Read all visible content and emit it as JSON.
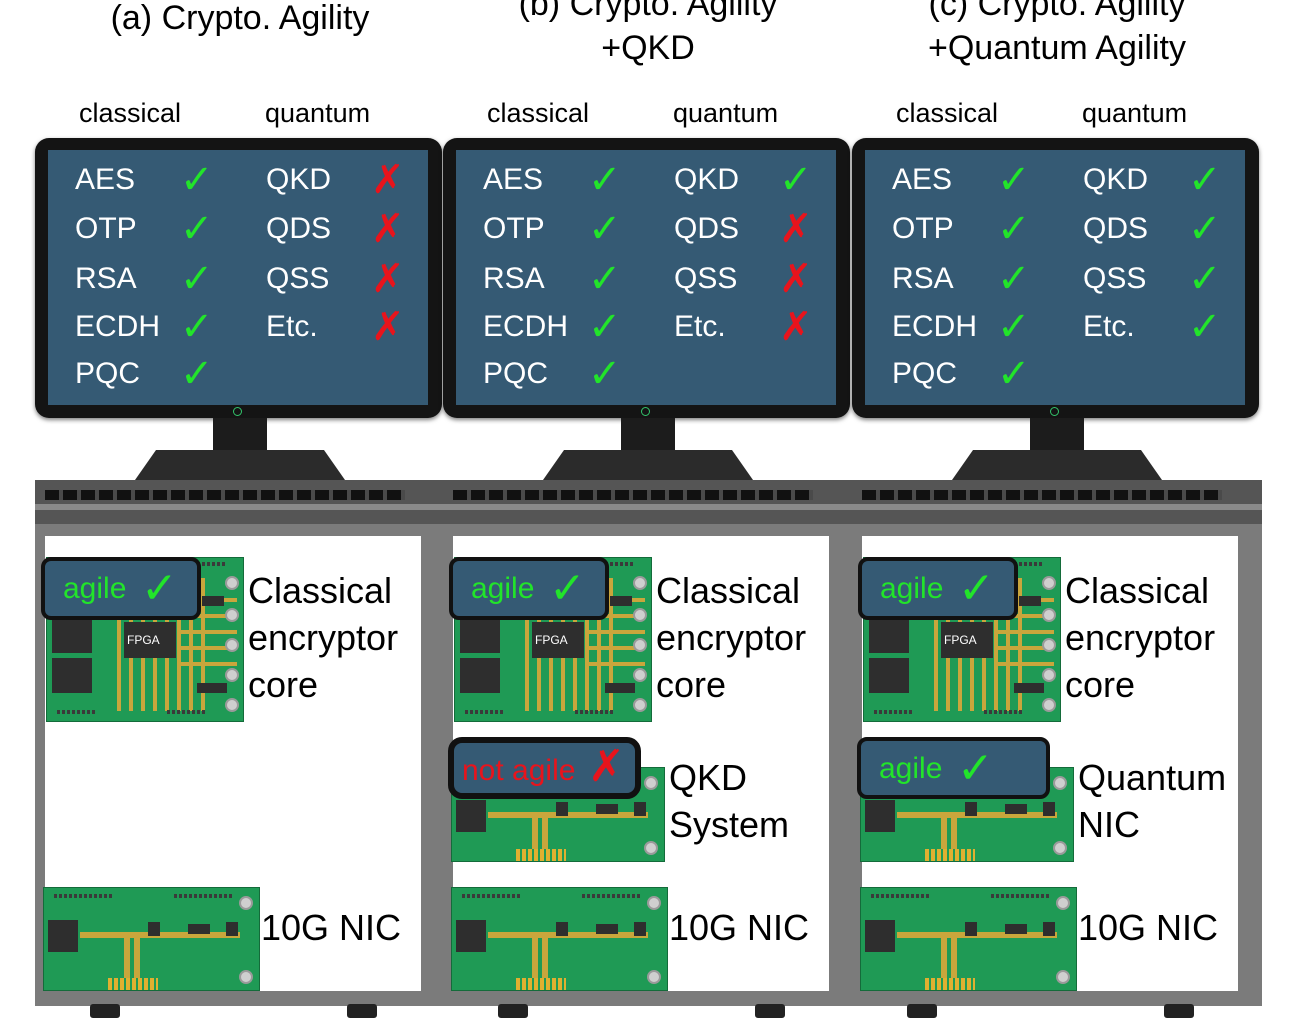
{
  "panels": [
    {
      "title_lines": [
        "(a) Crypto. Agility"
      ],
      "classical_header": "classical",
      "quantum_header": "quantum",
      "classical_algos": [
        {
          "name": "AES",
          "ok": true
        },
        {
          "name": "OTP",
          "ok": true
        },
        {
          "name": "RSA",
          "ok": true
        },
        {
          "name": "ECDH",
          "ok": true
        },
        {
          "name": "PQC",
          "ok": true
        }
      ],
      "quantum_algos": [
        {
          "name": "QKD",
          "ok": false
        },
        {
          "name": "QDS",
          "ok": false
        },
        {
          "name": "QSS",
          "ok": false
        },
        {
          "name": "Etc.",
          "ok": false
        }
      ],
      "cards": [
        {
          "kind": "encryptor",
          "chip_label": "FPGA",
          "label_lines": [
            "Classical",
            "encryptor",
            "core"
          ],
          "badge": {
            "text": "agile",
            "ok": true
          }
        },
        {
          "kind": "nic",
          "label_lines": [
            "10G NIC"
          ]
        }
      ]
    },
    {
      "title_lines": [
        "(b) Crypto. Agility",
        "+QKD"
      ],
      "classical_header": "classical",
      "quantum_header": "quantum",
      "classical_algos": [
        {
          "name": "AES",
          "ok": true
        },
        {
          "name": "OTP",
          "ok": true
        },
        {
          "name": "RSA",
          "ok": true
        },
        {
          "name": "ECDH",
          "ok": true
        },
        {
          "name": "PQC",
          "ok": true
        }
      ],
      "quantum_algos": [
        {
          "name": "QKD",
          "ok": true
        },
        {
          "name": "QDS",
          "ok": false
        },
        {
          "name": "QSS",
          "ok": false
        },
        {
          "name": "Etc.",
          "ok": false
        }
      ],
      "cards": [
        {
          "kind": "encryptor",
          "chip_label": "FPGA",
          "label_lines": [
            "Classical",
            "encryptor",
            "core"
          ],
          "badge": {
            "text": "agile",
            "ok": true
          }
        },
        {
          "kind": "quantum",
          "label_lines": [
            "QKD",
            "System"
          ],
          "badge": {
            "text": "not agile",
            "ok": false
          }
        },
        {
          "kind": "nic",
          "label_lines": [
            "10G NIC"
          ]
        }
      ]
    },
    {
      "title_lines": [
        "(c) Crypto. Agility",
        "+Quantum Agility"
      ],
      "classical_header": "classical",
      "quantum_header": "quantum",
      "classical_algos": [
        {
          "name": "AES",
          "ok": true
        },
        {
          "name": "OTP",
          "ok": true
        },
        {
          "name": "RSA",
          "ok": true
        },
        {
          "name": "ECDH",
          "ok": true
        },
        {
          "name": "PQC",
          "ok": true
        }
      ],
      "quantum_algos": [
        {
          "name": "QKD",
          "ok": true
        },
        {
          "name": "QDS",
          "ok": true
        },
        {
          "name": "QSS",
          "ok": true
        },
        {
          "name": "Etc.",
          "ok": true
        }
      ],
      "cards": [
        {
          "kind": "encryptor",
          "chip_label": "FPGA",
          "label_lines": [
            "Classical",
            "encryptor",
            "core"
          ],
          "badge": {
            "text": "agile",
            "ok": true
          }
        },
        {
          "kind": "quantum",
          "label_lines": [
            "Quantum",
            "NIC"
          ],
          "badge": {
            "text": "agile",
            "ok": true
          }
        },
        {
          "kind": "nic",
          "label_lines": [
            "10G NIC"
          ]
        }
      ]
    }
  ],
  "symbols": {
    "ok": "✓",
    "no": "✗"
  },
  "colors": {
    "ok": "#22e42a",
    "no": "#e8141c",
    "screen": "#355a74",
    "pcb": "#1f9a55"
  }
}
